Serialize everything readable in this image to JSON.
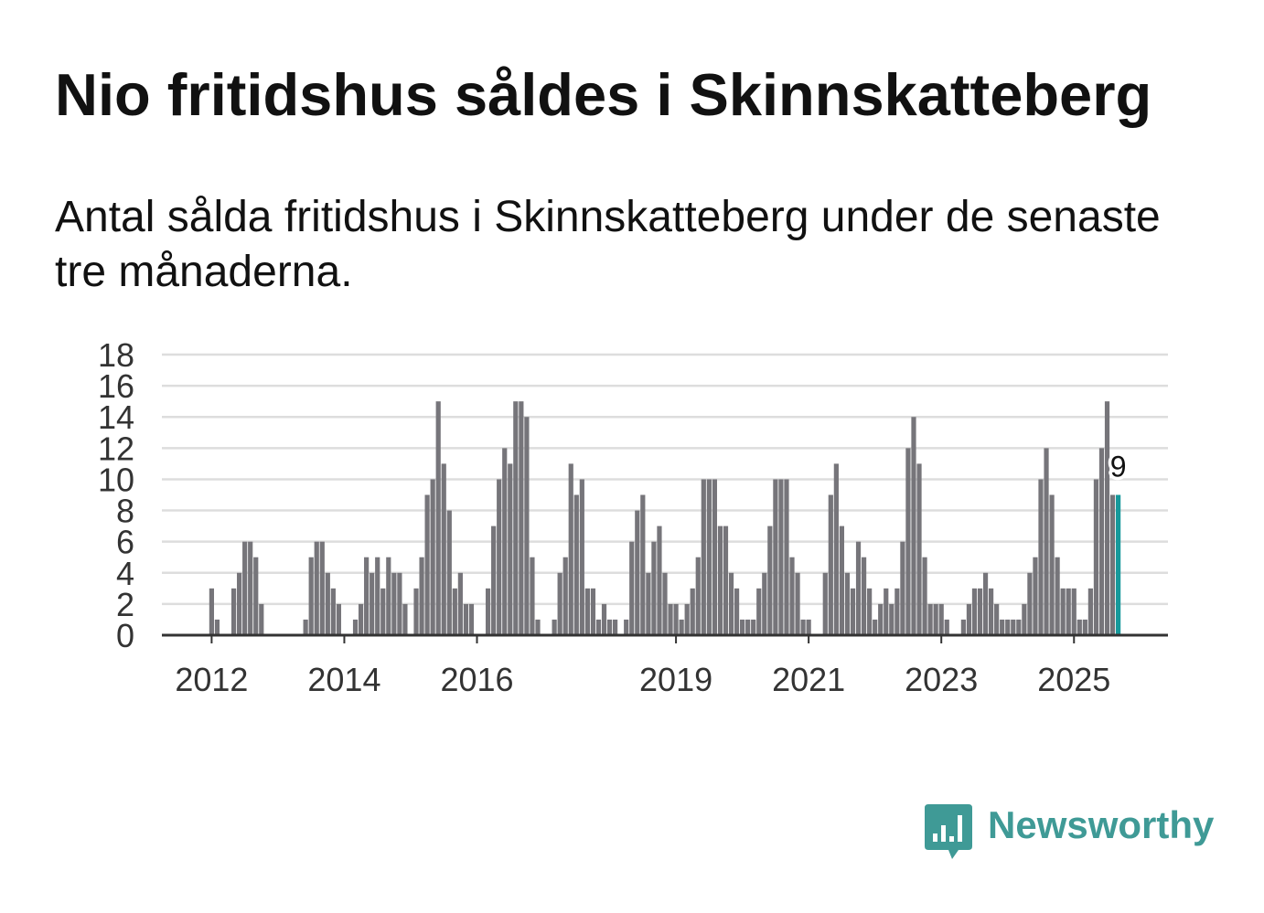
{
  "colors": {
    "bar": "#76757a",
    "highlight": "#16999b",
    "grid": "#dddddd",
    "axis": "#333333",
    "text": "#111111",
    "brand": "#3f9a96"
  },
  "chart_data": {
    "type": "bar",
    "title": "Nio fritidshus såldes i Skinnskatteberg",
    "subtitle": "Antal sålda fritidshus i Skinnskatteberg under de senaste tre månaderna.",
    "x": [
      "2012-01",
      "2012-02",
      "2012-03",
      "2012-04",
      "2012-05",
      "2012-06",
      "2012-07",
      "2012-08",
      "2012-09",
      "2012-10",
      "2012-11",
      "2012-12",
      "2013-01",
      "2013-02",
      "2013-03",
      "2013-04",
      "2013-05",
      "2013-06",
      "2013-07",
      "2013-08",
      "2013-09",
      "2013-10",
      "2013-11",
      "2013-12",
      "2014-01",
      "2014-02",
      "2014-03",
      "2014-04",
      "2014-05",
      "2014-06",
      "2014-07",
      "2014-08",
      "2014-09",
      "2014-10",
      "2014-11",
      "2014-12",
      "2015-01",
      "2015-02",
      "2015-03",
      "2015-04",
      "2015-05",
      "2015-06",
      "2015-07",
      "2015-08",
      "2015-09",
      "2015-10",
      "2015-11",
      "2015-12",
      "2016-01",
      "2016-02",
      "2016-03",
      "2016-04",
      "2016-05",
      "2016-06",
      "2016-07",
      "2016-08",
      "2016-09",
      "2016-10",
      "2016-11",
      "2016-12",
      "2017-01",
      "2017-02",
      "2017-03",
      "2017-04",
      "2017-05",
      "2017-06",
      "2017-07",
      "2017-08",
      "2017-09",
      "2017-10",
      "2017-11",
      "2017-12",
      "2018-01",
      "2018-02",
      "2018-03",
      "2018-04",
      "2018-05",
      "2018-06",
      "2018-07",
      "2018-08",
      "2018-09",
      "2018-10",
      "2018-11",
      "2018-12",
      "2019-01",
      "2019-02",
      "2019-03",
      "2019-04",
      "2019-05",
      "2019-06",
      "2019-07",
      "2019-08",
      "2019-09",
      "2019-10",
      "2019-11",
      "2019-12",
      "2020-01",
      "2020-02",
      "2020-03",
      "2020-04",
      "2020-05",
      "2020-06",
      "2020-07",
      "2020-08",
      "2020-09",
      "2020-10",
      "2020-11",
      "2020-12",
      "2021-01",
      "2021-02",
      "2021-03",
      "2021-04",
      "2021-05",
      "2021-06",
      "2021-07",
      "2021-08",
      "2021-09",
      "2021-10",
      "2021-11",
      "2021-12",
      "2022-01",
      "2022-02",
      "2022-03",
      "2022-04",
      "2022-05",
      "2022-06",
      "2022-07",
      "2022-08",
      "2022-09",
      "2022-10",
      "2022-11",
      "2022-12",
      "2023-01",
      "2023-02",
      "2023-03",
      "2023-04",
      "2023-05",
      "2023-06",
      "2023-07",
      "2023-08",
      "2023-09",
      "2023-10",
      "2023-11",
      "2023-12",
      "2024-01",
      "2024-02",
      "2024-03",
      "2024-04",
      "2024-05",
      "2024-06",
      "2024-07",
      "2024-08",
      "2024-09",
      "2024-10",
      "2024-11",
      "2024-12",
      "2025-01",
      "2025-02",
      "2025-03",
      "2025-04",
      "2025-05",
      "2025-06",
      "2025-07",
      "2025-08",
      "2025-09"
    ],
    "values": [
      3,
      1,
      0,
      0,
      3,
      4,
      6,
      6,
      5,
      2,
      0,
      0,
      0,
      0,
      0,
      0,
      0,
      1,
      5,
      6,
      6,
      4,
      3,
      2,
      0,
      0,
      1,
      2,
      5,
      4,
      5,
      3,
      5,
      4,
      4,
      2,
      0,
      3,
      5,
      9,
      10,
      15,
      11,
      8,
      3,
      4,
      2,
      2,
      0,
      0,
      3,
      7,
      10,
      12,
      11,
      15,
      15,
      14,
      5,
      1,
      0,
      0,
      1,
      4,
      5,
      11,
      9,
      10,
      3,
      3,
      1,
      2,
      1,
      1,
      0,
      1,
      6,
      8,
      9,
      4,
      6,
      7,
      4,
      2,
      2,
      1,
      2,
      3,
      5,
      10,
      10,
      10,
      7,
      7,
      4,
      3,
      1,
      1,
      1,
      3,
      4,
      7,
      10,
      10,
      10,
      5,
      4,
      1,
      1,
      0,
      0,
      4,
      9,
      11,
      7,
      4,
      3,
      6,
      5,
      3,
      1,
      2,
      3,
      2,
      3,
      6,
      12,
      14,
      11,
      5,
      2,
      2,
      2,
      1,
      0,
      0,
      1,
      2,
      3,
      3,
      4,
      3,
      2,
      1,
      1,
      1,
      1,
      2,
      4,
      5,
      10,
      12,
      9,
      5,
      3,
      3,
      3,
      1,
      1,
      3,
      10,
      12,
      15,
      9,
      9
    ],
    "ylim": [
      0,
      18
    ],
    "yticks": [
      0,
      2,
      4,
      6,
      8,
      10,
      12,
      14,
      16,
      18
    ],
    "xlim": [
      "2011-04",
      "2026-06"
    ],
    "xticks": [
      "2012",
      "2014",
      "2016",
      "2019",
      "2021",
      "2023",
      "2025"
    ],
    "grid": true,
    "highlight": {
      "x": "2025-09",
      "label": "9"
    }
  },
  "branding": {
    "logo_text": "Newsworthy",
    "logo_icon": "newsworthy-chart-bubble-icon"
  }
}
